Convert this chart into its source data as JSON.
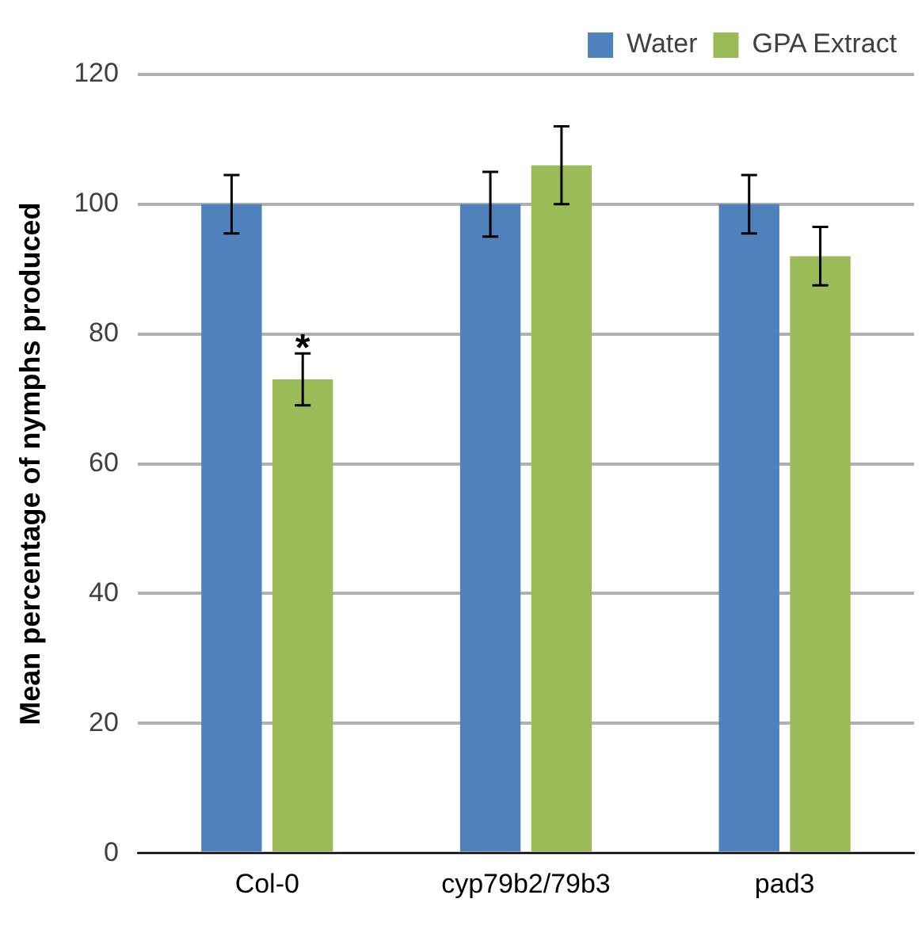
{
  "chart_data": {
    "type": "bar",
    "ylabel": "Mean percentage of nymphs produced",
    "categories": [
      "Col-0",
      "cyp79b2/79b3",
      "pad3"
    ],
    "series": [
      {
        "name": "Water",
        "color": "#4f81bd",
        "values": [
          100,
          100,
          100
        ],
        "errors": [
          4.5,
          5,
          4.5
        ]
      },
      {
        "name": "GPA Extract",
        "color": "#9bbb59",
        "values": [
          73,
          106,
          92
        ],
        "errors": [
          4,
          6,
          4.5
        ]
      }
    ],
    "ylim": [
      0,
      120
    ],
    "yticks": [
      0,
      20,
      40,
      60,
      80,
      100,
      120
    ],
    "grid": "y",
    "legend": "top right",
    "annotations": [
      {
        "text": "*",
        "x": "Col-0",
        "y": 79
      }
    ]
  }
}
